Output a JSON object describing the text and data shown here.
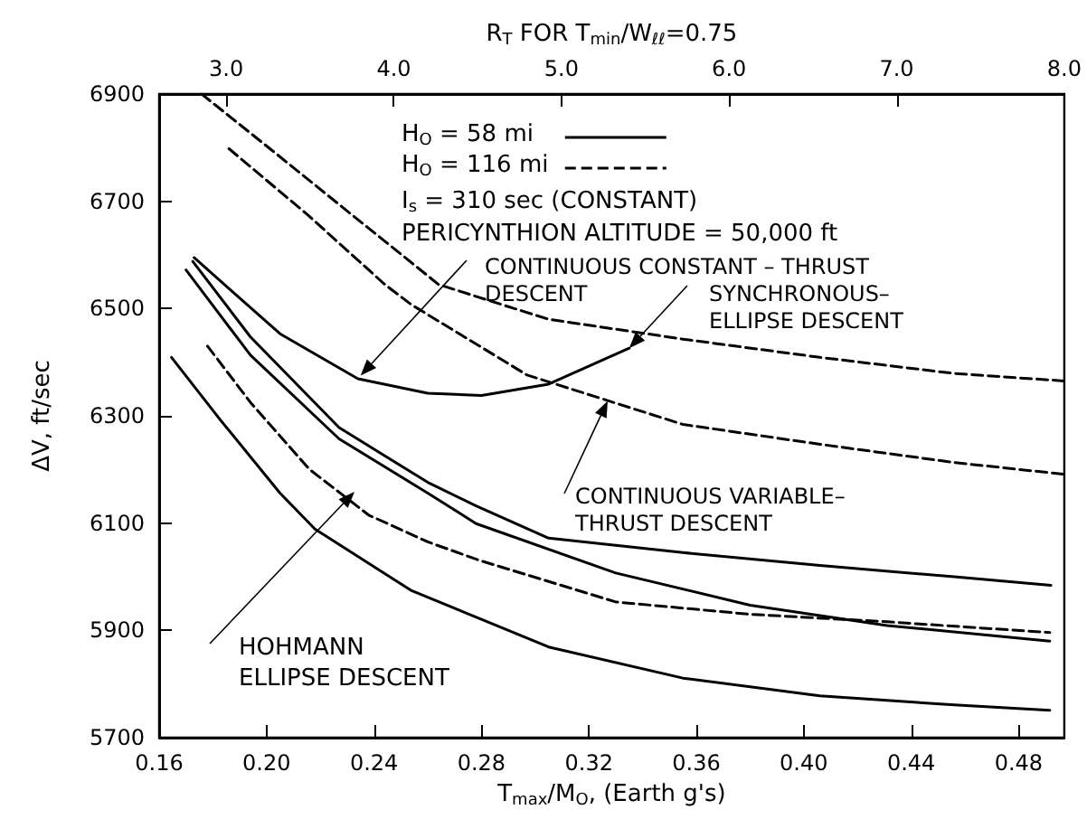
{
  "chart_data": {
    "type": "line",
    "xlabel": "T$_{max}$/M$_{O}$, (Earth g's)",
    "ylabel": "ΔV, ft/sec",
    "x2label": "R$_{T}$ FOR T$_{min}$/W$_{ℓℓ}$=0.75",
    "xlim": [
      0.16,
      0.497
    ],
    "xticks": [
      0.16,
      {
        "value": 0.2,
        "label": "0.20"
      },
      0.24,
      0.28,
      0.32,
      0.36,
      {
        "value": 0.4,
        "label": "0.40"
      },
      0.44,
      0.48
    ],
    "x2lim": [
      2.6,
      8.0
    ],
    "x2ticks": [
      {
        "value": 3,
        "label": "3.0"
      },
      {
        "value": 4,
        "label": "4.0"
      },
      {
        "value": 5,
        "label": "5.0"
      },
      {
        "value": 6,
        "label": "6.0"
      },
      {
        "value": 7,
        "label": "7.0"
      },
      {
        "value": 8,
        "label": "8.0"
      }
    ],
    "ylim": [
      5700,
      6900
    ],
    "yticks": [
      5700,
      5900,
      6100,
      6300,
      6500,
      6700,
      6900
    ],
    "grid": false,
    "marker": "none",
    "legend": "top",
    "series": [
      {
        "name": "H$_{O}$ = 58 mi",
        "color": "#000000",
        "line_style": "solid",
        "x": [
          0.1646,
          0.183,
          0.205,
          0.218,
          0.254,
          0.305,
          0.355,
          0.406,
          0.456,
          0.4916
        ],
        "values": [
          6409,
          6291,
          6156,
          6089,
          5974,
          5869,
          5811,
          5778,
          5761,
          5751
        ]
      },
      {
        "name": "H$_{O}$ = 116 mi",
        "color": "#000000",
        "line_style": "dashed",
        "x": [
          0.1758,
          0.203,
          0.228,
          0.264,
          0.279,
          0.305,
          0.355,
          0.406,
          0.456,
          0.497
        ],
        "values": [
          6900,
          6791,
          6690,
          6545,
          6521,
          6480,
          6443,
          6409,
          6379,
          6365
        ]
      },
      {
        "color": "#000000",
        "line_style": "dashed",
        "x": [
          0.178,
          0.194,
          0.216,
          0.238,
          0.26,
          0.279,
          0.33,
          0.38,
          0.431,
          0.4916
        ],
        "values": [
          6430,
          6325,
          6200,
          6115,
          6065,
          6031,
          5953,
          5930,
          5916,
          5896
        ]
      },
      {
        "color": "#000000",
        "line_style": "solid",
        "x": [
          0.17,
          0.194,
          0.227,
          0.26,
          0.278,
          0.33,
          0.38,
          0.431,
          0.4916
        ],
        "values": [
          6572,
          6413,
          6257,
          6156,
          6099,
          6007,
          5947,
          5909,
          5880
        ]
      },
      {
        "color": "#000000",
        "line_style": "solid",
        "x": [
          0.1725,
          0.194,
          0.227,
          0.26,
          0.278,
          0.305,
          0.355,
          0.406,
          0.456,
          0.492
        ],
        "values": [
          6588,
          6447,
          6278,
          6176,
          6132,
          6072,
          6045,
          6021,
          6000,
          5984
        ]
      },
      {
        "color": "#000000",
        "line_style": "solid",
        "x": [
          0.173,
          0.205,
          0.234,
          0.26,
          0.28,
          0.305,
          0.335
        ],
        "values": [
          6595,
          6453,
          6369,
          6342,
          6338,
          6359,
          6426
        ]
      },
      {
        "color": "#000000",
        "line_style": "dashed",
        "x": [
          0.186,
          0.215,
          0.244,
          0.254,
          0.297,
          0.355,
          0.406,
          0.456,
          0.497
        ],
        "values": [
          6798,
          6676,
          6545,
          6507,
          6376,
          6284,
          6247,
          6213,
          6191
        ]
      }
    ],
    "annotations": [
      "I$_{s}$ = 310 sec (CONSTANT)",
      "PERICYNTHION ALTITUDE = 50,000 ft",
      {
        "text": "CONTINUOUS CONSTANT – THRUST\nDESCENT",
        "x": 0.235,
        "y": 6375
      },
      {
        "text": "SYNCHRONOUS–\nELLIPSE DESCENT",
        "x": 0.335,
        "y": 6426
      },
      {
        "text": "CONTINUOUS VARIABLE–\nTHRUST DESCENT",
        "x": 0.327,
        "y": 6328
      },
      "HOHMANN\nELLIPSE DESCENT"
    ]
  }
}
